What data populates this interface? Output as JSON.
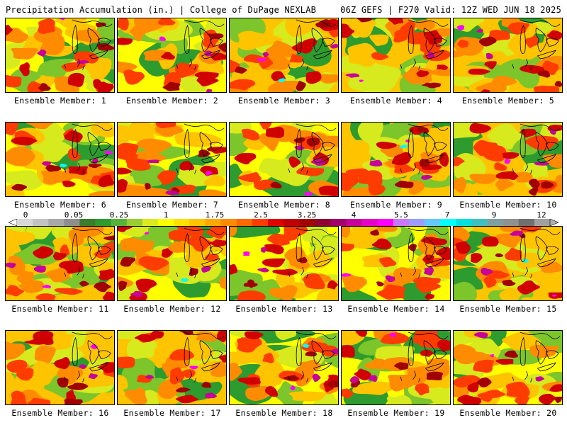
{
  "header": {
    "left": "Precipitation Accumulation (in.) | College of DuPage NEXLAB",
    "right": "06Z GEFS | F270 Valid: 12Z WED JUN 18 2025"
  },
  "panels": [
    {
      "label": "Ensemble Member: 1"
    },
    {
      "label": "Ensemble Member: 2"
    },
    {
      "label": "Ensemble Member: 3"
    },
    {
      "label": "Ensemble Member: 4"
    },
    {
      "label": "Ensemble Member: 5"
    },
    {
      "label": "Ensemble Member: 6"
    },
    {
      "label": "Ensemble Member: 7"
    },
    {
      "label": "Ensemble Member: 8"
    },
    {
      "label": "Ensemble Member: 9"
    },
    {
      "label": "Ensemble Member: 10"
    },
    {
      "label": "Ensemble Member: 11"
    },
    {
      "label": "Ensemble Member: 12"
    },
    {
      "label": "Ensemble Member: 13"
    },
    {
      "label": "Ensemble Member: 14"
    },
    {
      "label": "Ensemble Member: 15"
    },
    {
      "label": "Ensemble Member: 16"
    },
    {
      "label": "Ensemble Member: 17"
    },
    {
      "label": "Ensemble Member: 18"
    },
    {
      "label": "Ensemble Member: 19"
    },
    {
      "label": "Ensemble Member: 20"
    }
  ],
  "colorbar": {
    "labels": [
      "0",
      "0.05",
      "0.25",
      "1",
      "1.75",
      "2.5",
      "3.25",
      "4",
      "5.5",
      "7",
      "9",
      "12"
    ],
    "colors": [
      "#d8d8d8",
      "#c2c2c2",
      "#a8a8a8",
      "#8e8e8e",
      "#3a7d2c",
      "#2e9b2e",
      "#56b33a",
      "#9acd32",
      "#dcea1e",
      "#ffff00",
      "#ffe000",
      "#ffc400",
      "#ffa800",
      "#ff8c00",
      "#ff6a00",
      "#ff3c00",
      "#e00000",
      "#c00000",
      "#a00000",
      "#900030",
      "#a0006a",
      "#c8009a",
      "#e600c8",
      "#ff00ff",
      "#c878ff",
      "#9c9cff",
      "#64c8ff",
      "#00ffff",
      "#00e0e0",
      "#40c0c0",
      "#80a0a0",
      "#909090",
      "#707070",
      "#a0a0a0"
    ]
  }
}
